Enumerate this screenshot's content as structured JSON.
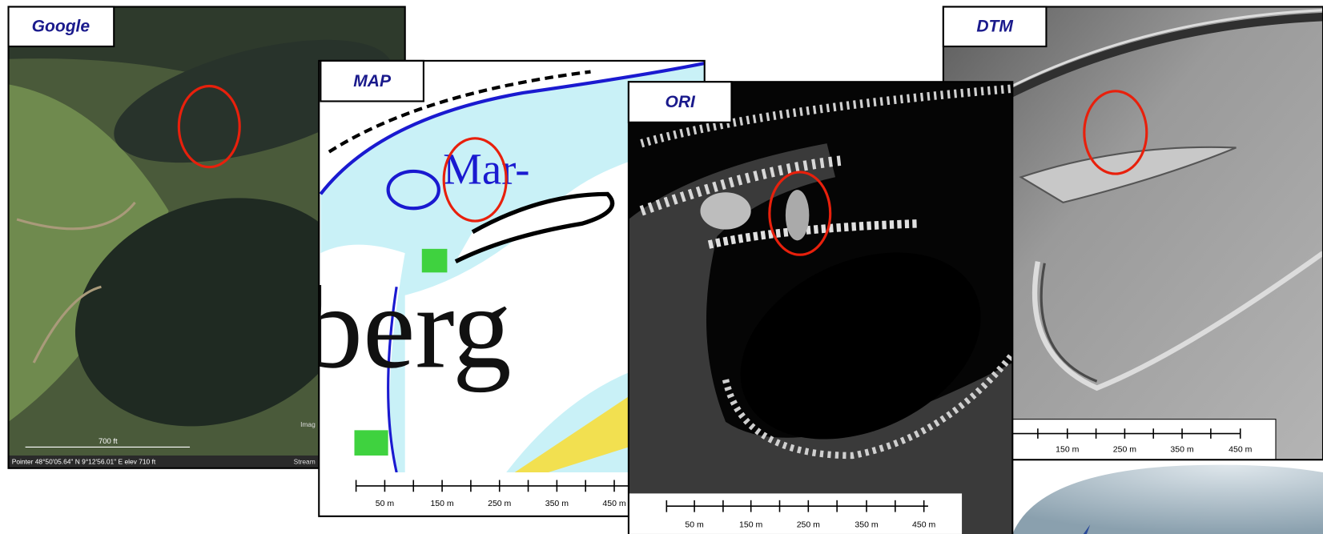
{
  "panels": [
    {
      "label": "Google",
      "scale_label": "700 ft",
      "status": "Pointer  48°50'05.64\"  N    9°12'56.01\"  E     elev  710 ft",
      "edge_texts": [
        "Imag",
        "Stream"
      ]
    },
    {
      "label": "MAP",
      "map_texts": [
        "Mar-",
        "berg"
      ],
      "scale_labels": [
        "50 m",
        "150 m",
        "250 m",
        "350 m",
        "450 m"
      ]
    },
    {
      "label": "ORI",
      "scale_labels": [
        "50 m",
        "150 m",
        "250 m",
        "350 m",
        "450 m"
      ]
    },
    {
      "label": "DTM",
      "scale_labels": [
        "150 m",
        "250 m",
        "350 m",
        "450 m"
      ]
    }
  ]
}
